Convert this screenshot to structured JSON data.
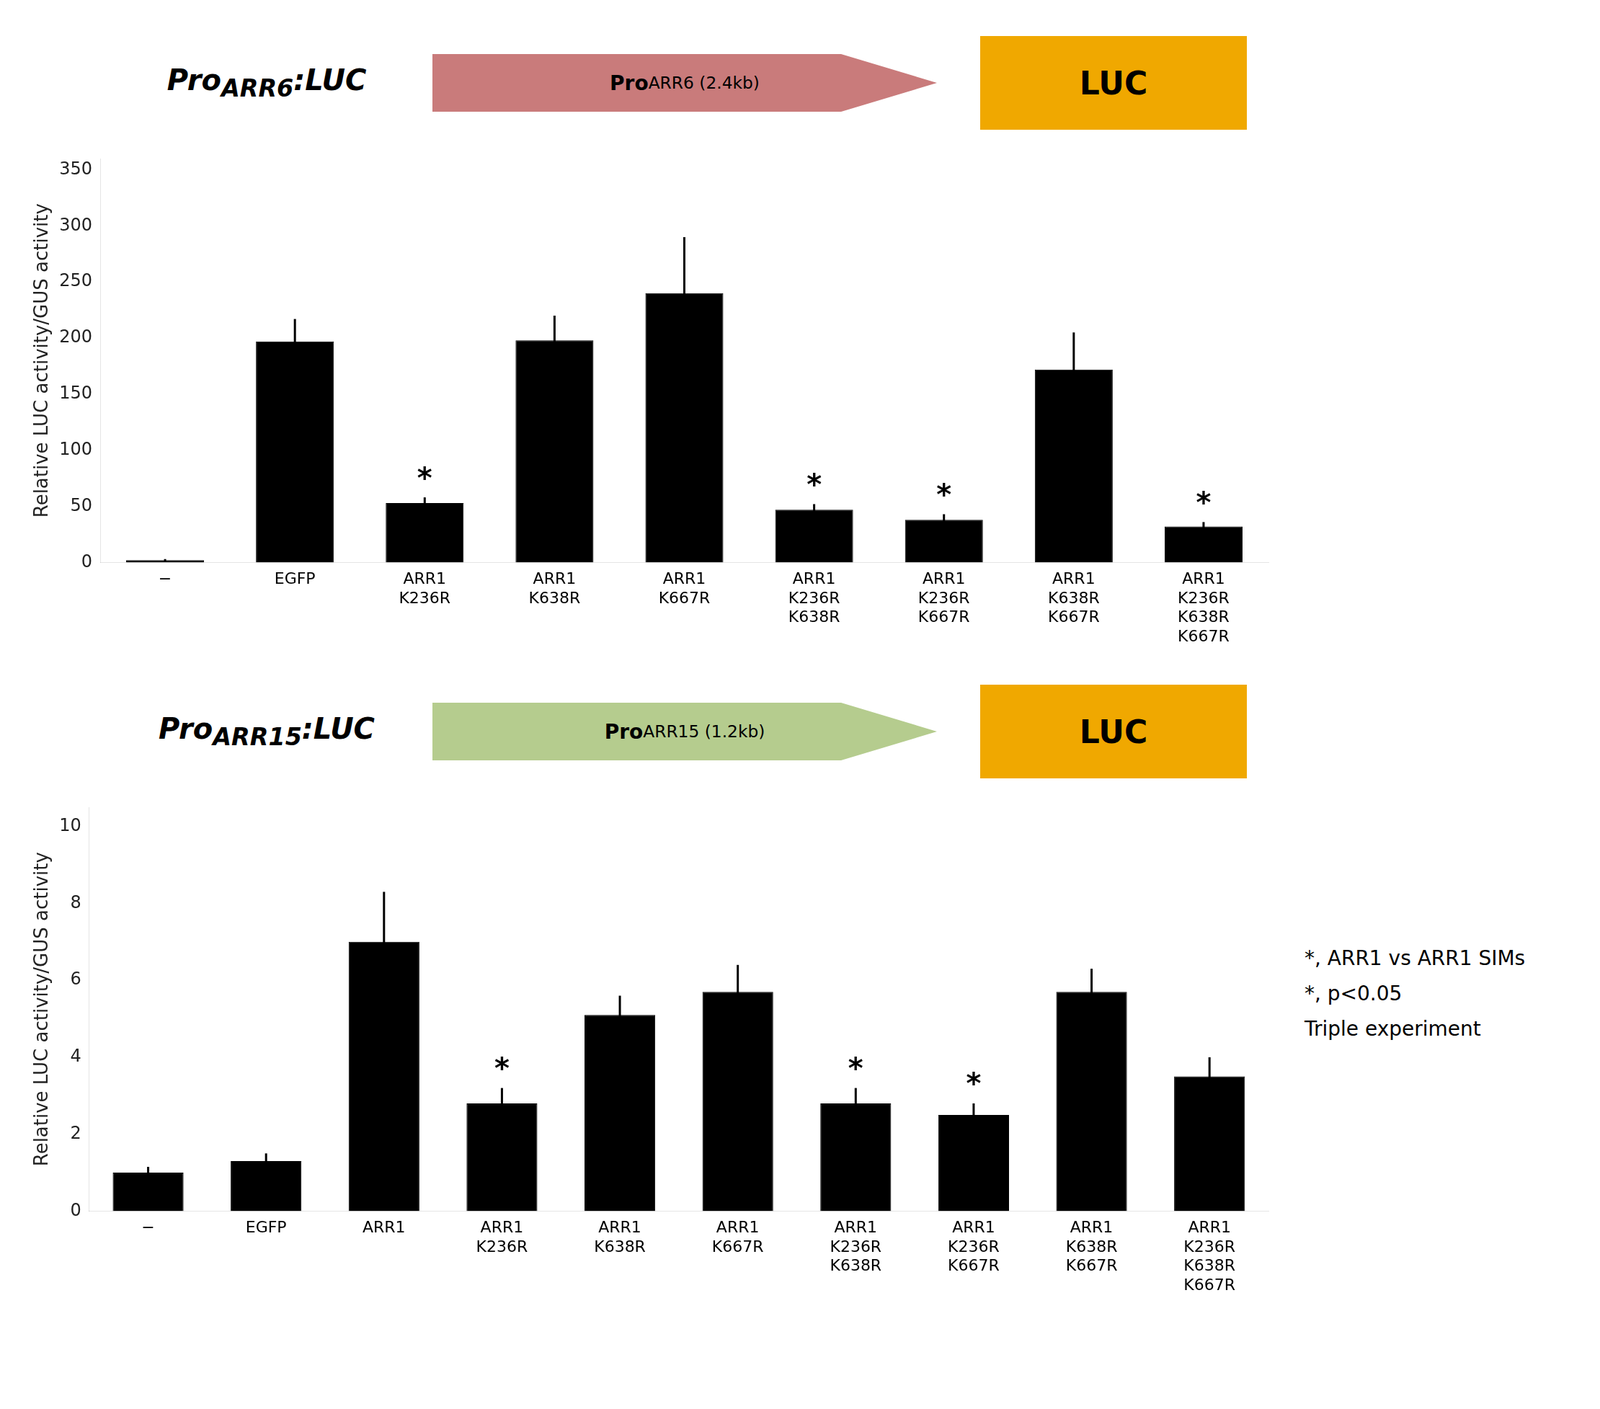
{
  "chart_data": [
    {
      "type": "bar",
      "categories": [
        [
          "−"
        ],
        [
          "EGFP"
        ],
        [
          "ARR1",
          "K236R"
        ],
        [
          "ARR1",
          "K638R"
        ],
        [
          "ARR1",
          "K667R"
        ],
        [
          "ARR1",
          "K236R",
          "K638R"
        ],
        [
          "ARR1",
          "K236R",
          "K667R"
        ],
        [
          "ARR1",
          "K638R",
          "K667R"
        ],
        [
          "ARR1",
          "K236R",
          "K638R",
          "K667R"
        ]
      ],
      "values": [
        2,
        197,
        53,
        198,
        240,
        47,
        38,
        172,
        32
      ],
      "errors": [
        1,
        20,
        5,
        22,
        50,
        5,
        5,
        33,
        4
      ],
      "bar_annotations": [
        null,
        null,
        "*",
        null,
        null,
        "*",
        "*",
        null,
        "*"
      ],
      "color": "#000000",
      "ylabel": "Relative LUC activity/GUS activity",
      "ylim": [
        0,
        360
      ],
      "yticks": [
        0,
        50,
        100,
        150,
        200,
        250,
        300,
        350
      ],
      "grid": false,
      "annotations": [
        {
          "text": "Pro",
          "subscript": "ARR6",
          "suffix": ":LUC"
        },
        {
          "text": "Pro",
          "subscript": "ARR6 (2.4kb)",
          "shape": "arrow",
          "color": "#c97b7b"
        },
        {
          "text": "LUC",
          "shape": "box",
          "color": "#f0a800"
        }
      ]
    },
    {
      "type": "bar",
      "categories": [
        [
          "−"
        ],
        [
          "EGFP"
        ],
        [
          "ARR1"
        ],
        [
          "ARR1",
          "K236R"
        ],
        [
          "ARR1",
          "K638R"
        ],
        [
          "ARR1",
          "K667R"
        ],
        [
          "ARR1",
          "K236R",
          "K638R"
        ],
        [
          "ARR1",
          "K236R",
          "K667R"
        ],
        [
          "ARR1",
          "K638R",
          "K667R"
        ],
        [
          "ARR1",
          "K236R",
          "K638R",
          "K667R"
        ]
      ],
      "values": [
        1.0,
        1.3,
        7.0,
        2.8,
        5.1,
        5.7,
        2.8,
        2.5,
        5.7,
        3.5
      ],
      "errors": [
        0.15,
        0.2,
        1.3,
        0.4,
        0.5,
        0.7,
        0.4,
        0.3,
        0.6,
        0.5
      ],
      "bar_annotations": [
        null,
        null,
        null,
        "*",
        null,
        null,
        "*",
        "*",
        null,
        null
      ],
      "color": "#000000",
      "ylabel": "Relative LUC activity/GUS activity",
      "ylim": [
        0,
        10.5
      ],
      "yticks": [
        0,
        2,
        4,
        6,
        8,
        10
      ],
      "grid": false,
      "annotations": [
        {
          "text": "Pro",
          "subscript": "ARR15",
          "suffix": ":LUC"
        },
        {
          "text": "Pro",
          "subscript": "ARR15 (1.2kb)",
          "shape": "arrow",
          "color": "#b5cc8e"
        },
        {
          "text": "LUC",
          "shape": "box",
          "color": "#f0a800"
        }
      ]
    }
  ],
  "annotations": [
    "*, ARR1 vs ARR1 SIMs",
    "*, p<0.05",
    "Triple experiment"
  ]
}
